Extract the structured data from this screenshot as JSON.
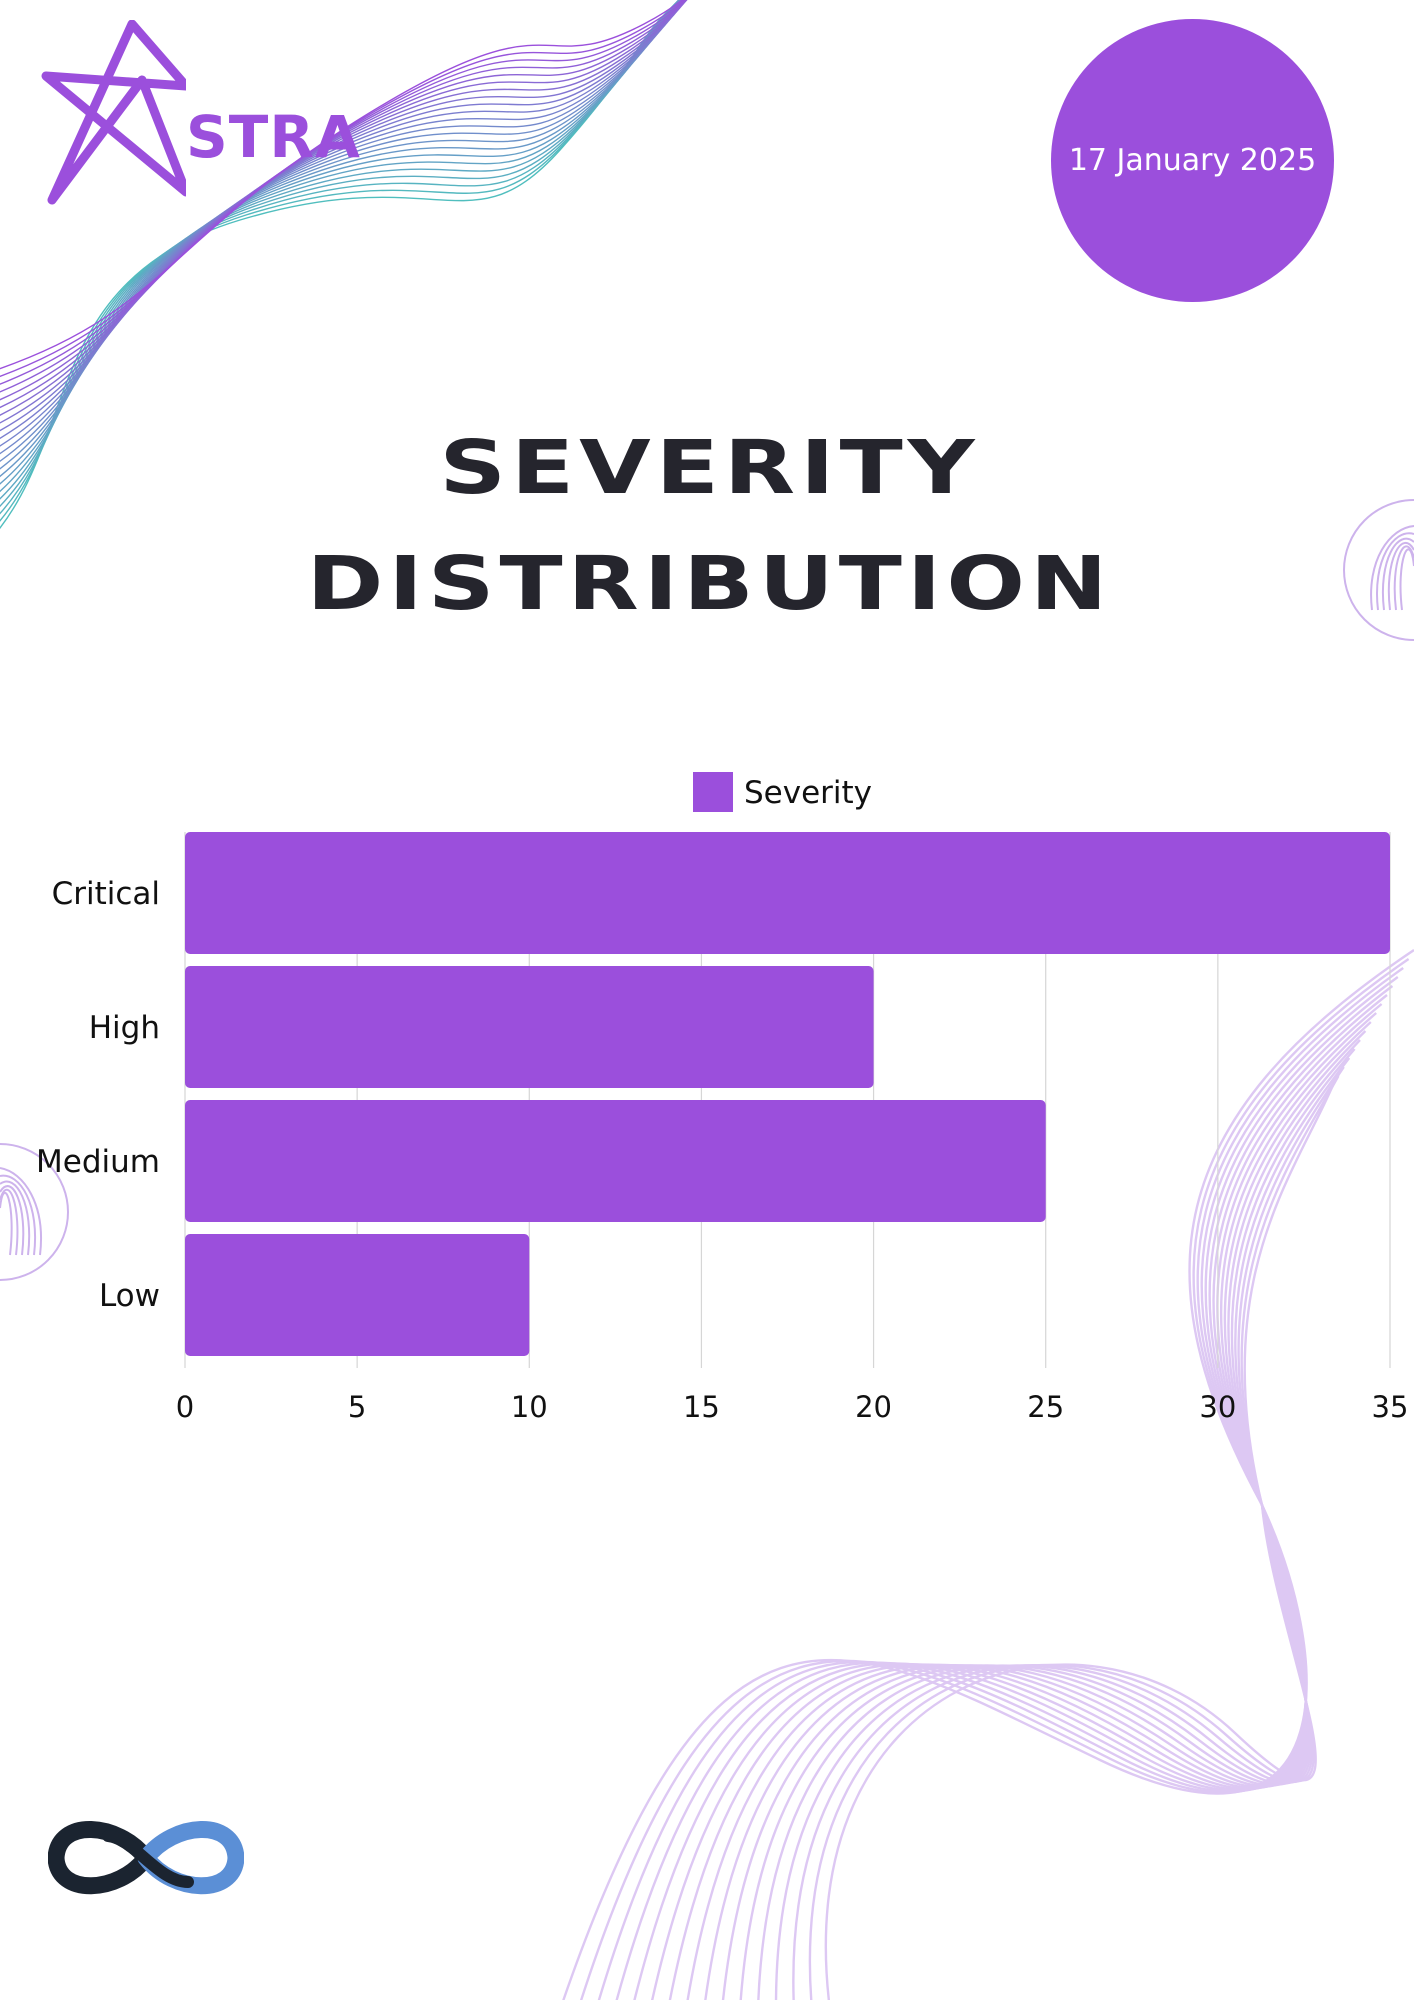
{
  "brand": {
    "name": "STRA",
    "accent_color": "#9b4fdc",
    "logo_icon": "star-icon",
    "footer_logo_icon": "infinity-icon"
  },
  "header": {
    "date": "17 January 2025"
  },
  "title": {
    "line1": "SEVERITY",
    "line2": "DISTRIBUTION"
  },
  "chart_data": {
    "type": "bar",
    "orientation": "horizontal",
    "categories": [
      "Critical",
      "High",
      "Medium",
      "Low"
    ],
    "series": [
      {
        "name": "Severity",
        "values": [
          35,
          20,
          25,
          10
        ],
        "color": "#9b4fdc"
      }
    ],
    "xlim": [
      0,
      35
    ],
    "x_ticks": [
      0,
      5,
      10,
      15,
      20,
      25,
      30,
      35
    ],
    "grid": true,
    "legend_position": "top-center"
  }
}
